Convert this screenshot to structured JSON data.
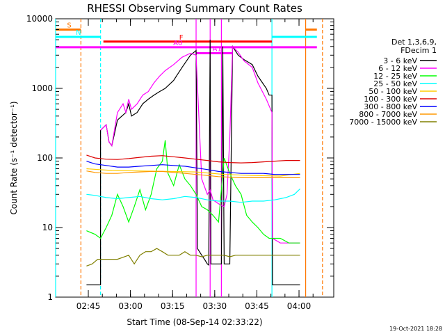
{
  "chart_data": {
    "type": "line",
    "title": "RHESSI Observing Summary Count Rates",
    "xlabel": "Start Time (08-Sep-14 02:33:22)",
    "ylabel": "Count Rate (s⁻¹ detector⁻¹)",
    "y_scale": "log",
    "ylim": [
      1,
      10000
    ],
    "xlim_minutes_after_start": [
      0,
      99
    ],
    "x_start": "02:33:22",
    "x_ticks": [
      "02:45",
      "03:00",
      "03:15",
      "03:30",
      "03:45",
      "04:00"
    ],
    "y_ticks": [
      "1",
      "10",
      "100",
      "1000",
      "10000"
    ],
    "legend_title": [
      "Det 1,3,6,9,",
      "FDecim 1"
    ],
    "legend_position": "right",
    "series": [
      {
        "name": "3 - 6 keV",
        "color": "#000000",
        "points": [
          [
            11,
            1.5
          ],
          [
            16,
            1.5
          ],
          [
            16,
            250
          ],
          [
            18,
            300
          ],
          [
            19,
            170
          ],
          [
            20,
            150
          ],
          [
            22,
            350
          ],
          [
            25,
            450
          ],
          [
            26,
            600
          ],
          [
            27,
            400
          ],
          [
            29,
            450
          ],
          [
            31,
            600
          ],
          [
            33,
            700
          ],
          [
            35,
            800
          ],
          [
            37,
            900
          ],
          [
            39,
            1000
          ],
          [
            42,
            1300
          ],
          [
            45,
            2000
          ],
          [
            48,
            3000
          ],
          [
            50,
            3500
          ],
          [
            50.5,
            5
          ],
          [
            52,
            4
          ],
          [
            53,
            3.5
          ],
          [
            54,
            3
          ],
          [
            54.5,
            2.9
          ],
          [
            55,
            5000
          ],
          [
            55.3,
            3
          ],
          [
            58,
            3
          ],
          [
            59,
            3
          ],
          [
            59.5,
            4000
          ],
          [
            60,
            3
          ],
          [
            62,
            3
          ],
          [
            63,
            4000
          ],
          [
            65,
            3000
          ],
          [
            67,
            2600
          ],
          [
            70,
            2200
          ],
          [
            72,
            1500
          ],
          [
            75,
            1000
          ],
          [
            76,
            800
          ],
          [
            77,
            800
          ],
          [
            77.2,
            1.5
          ],
          [
            87,
            1.5
          ]
        ]
      },
      {
        "name": "6 - 12 keV",
        "color": "#ff00ff",
        "points": [
          [
            16,
            250
          ],
          [
            18,
            300
          ],
          [
            19,
            170
          ],
          [
            20,
            150
          ],
          [
            22,
            450
          ],
          [
            24,
            600
          ],
          [
            25,
            450
          ],
          [
            26,
            700
          ],
          [
            27,
            500
          ],
          [
            29,
            600
          ],
          [
            31,
            800
          ],
          [
            33,
            900
          ],
          [
            35,
            1200
          ],
          [
            37,
            1500
          ],
          [
            39,
            1800
          ],
          [
            42,
            2200
          ],
          [
            45,
            2800
          ],
          [
            48,
            3200
          ],
          [
            50,
            3000
          ],
          [
            52,
            50
          ],
          [
            54,
            30
          ],
          [
            55,
            35
          ],
          [
            56,
            25
          ],
          [
            58,
            22
          ],
          [
            60,
            20
          ],
          [
            61,
            30
          ],
          [
            62,
            200
          ],
          [
            63,
            4000
          ],
          [
            65,
            3300
          ],
          [
            67,
            2500
          ],
          [
            70,
            2000
          ],
          [
            72,
            1200
          ],
          [
            75,
            700
          ],
          [
            77,
            450
          ],
          [
            77.2,
            7
          ],
          [
            80,
            6
          ],
          [
            87,
            6
          ]
        ]
      },
      {
        "name": "12 - 25 keV",
        "color": "#00ff00",
        "points": [
          [
            11,
            9
          ],
          [
            14,
            8
          ],
          [
            16,
            7
          ],
          [
            18,
            10
          ],
          [
            20,
            15
          ],
          [
            22,
            30
          ],
          [
            24,
            20
          ],
          [
            26,
            12
          ],
          [
            28,
            20
          ],
          [
            30,
            35
          ],
          [
            32,
            18
          ],
          [
            34,
            30
          ],
          [
            36,
            70
          ],
          [
            38,
            90
          ],
          [
            39,
            180
          ],
          [
            40,
            60
          ],
          [
            42,
            40
          ],
          [
            44,
            80
          ],
          [
            46,
            50
          ],
          [
            48,
            40
          ],
          [
            50,
            30
          ],
          [
            52,
            20
          ],
          [
            54,
            18
          ],
          [
            56,
            15
          ],
          [
            58,
            12
          ],
          [
            60,
            100
          ],
          [
            62,
            60
          ],
          [
            64,
            40
          ],
          [
            66,
            30
          ],
          [
            68,
            15
          ],
          [
            70,
            12
          ],
          [
            72,
            10
          ],
          [
            74,
            8
          ],
          [
            76,
            7
          ],
          [
            77,
            7
          ],
          [
            78,
            7
          ],
          [
            80,
            7
          ],
          [
            83,
            6
          ],
          [
            87,
            6
          ]
        ]
      },
      {
        "name": "25 - 50 keV",
        "color": "#00ffff",
        "points": [
          [
            11,
            30
          ],
          [
            14,
            29
          ],
          [
            18,
            27
          ],
          [
            22,
            26
          ],
          [
            26,
            27
          ],
          [
            30,
            28
          ],
          [
            34,
            26
          ],
          [
            38,
            25
          ],
          [
            42,
            26
          ],
          [
            46,
            28
          ],
          [
            50,
            27
          ],
          [
            54,
            25
          ],
          [
            58,
            24
          ],
          [
            62,
            24
          ],
          [
            66,
            23
          ],
          [
            70,
            24
          ],
          [
            74,
            24
          ],
          [
            78,
            25
          ],
          [
            82,
            27
          ],
          [
            85,
            30
          ],
          [
            87,
            36
          ]
        ]
      },
      {
        "name": "50 - 100 keV",
        "color": "#ffcc00",
        "points": [
          [
            11,
            70
          ],
          [
            20,
            66
          ],
          [
            30,
            65
          ],
          [
            40,
            64
          ],
          [
            50,
            63
          ],
          [
            60,
            58
          ],
          [
            70,
            56
          ],
          [
            80,
            55
          ],
          [
            87,
            60
          ]
        ]
      },
      {
        "name": "100 - 300 keV",
        "color": "#dd0000",
        "points": [
          [
            11,
            110
          ],
          [
            14,
            100
          ],
          [
            18,
            96
          ],
          [
            22,
            95
          ],
          [
            26,
            98
          ],
          [
            30,
            102
          ],
          [
            34,
            106
          ],
          [
            38,
            108
          ],
          [
            42,
            104
          ],
          [
            46,
            100
          ],
          [
            50,
            96
          ],
          [
            54,
            92
          ],
          [
            58,
            88
          ],
          [
            62,
            86
          ],
          [
            66,
            85
          ],
          [
            70,
            86
          ],
          [
            74,
            88
          ],
          [
            78,
            90
          ],
          [
            82,
            92
          ],
          [
            87,
            92
          ]
        ]
      },
      {
        "name": "300 - 800 keV",
        "color": "#0000ff",
        "points": [
          [
            11,
            90
          ],
          [
            14,
            82
          ],
          [
            18,
            78
          ],
          [
            22,
            74
          ],
          [
            26,
            74
          ],
          [
            30,
            76
          ],
          [
            34,
            78
          ],
          [
            38,
            80
          ],
          [
            42,
            78
          ],
          [
            46,
            76
          ],
          [
            50,
            72
          ],
          [
            54,
            68
          ],
          [
            58,
            64
          ],
          [
            62,
            62
          ],
          [
            66,
            60
          ],
          [
            70,
            60
          ],
          [
            74,
            60
          ],
          [
            78,
            58
          ],
          [
            82,
            58
          ],
          [
            87,
            58
          ]
        ]
      },
      {
        "name": "800 - 7000 keV",
        "color": "#ff9900",
        "points": [
          [
            11,
            65
          ],
          [
            14,
            62
          ],
          [
            18,
            60
          ],
          [
            22,
            60
          ],
          [
            26,
            62
          ],
          [
            30,
            63
          ],
          [
            34,
            64
          ],
          [
            38,
            64
          ],
          [
            42,
            62
          ],
          [
            46,
            60
          ],
          [
            50,
            58
          ],
          [
            54,
            56
          ],
          [
            58,
            54
          ],
          [
            62,
            53
          ],
          [
            66,
            52
          ],
          [
            70,
            52
          ],
          [
            74,
            52
          ],
          [
            78,
            52
          ],
          [
            82,
            52
          ],
          [
            87,
            52
          ]
        ]
      },
      {
        "name": "7000 - 15000 keV",
        "color": "#808000",
        "points": [
          [
            11,
            2.8
          ],
          [
            13,
            3
          ],
          [
            15,
            3.5
          ],
          [
            18,
            3.5
          ],
          [
            22,
            3.5
          ],
          [
            26,
            4
          ],
          [
            28,
            3
          ],
          [
            30,
            4
          ],
          [
            32,
            4.5
          ],
          [
            34,
            4.5
          ],
          [
            36,
            5
          ],
          [
            38,
            4.5
          ],
          [
            40,
            4
          ],
          [
            42,
            4
          ],
          [
            44,
            4
          ],
          [
            46,
            4.5
          ],
          [
            48,
            4
          ],
          [
            50,
            4
          ],
          [
            52,
            3.8
          ],
          [
            54,
            4
          ],
          [
            56,
            4
          ],
          [
            58,
            4
          ],
          [
            60,
            4
          ],
          [
            62,
            3.8
          ],
          [
            64,
            4
          ],
          [
            66,
            4
          ],
          [
            68,
            4
          ],
          [
            70,
            4
          ],
          [
            72,
            4
          ],
          [
            74,
            4
          ],
          [
            76,
            4
          ],
          [
            78,
            4
          ],
          [
            80,
            4
          ],
          [
            82,
            4
          ],
          [
            84,
            4
          ],
          [
            87,
            4
          ]
        ]
      }
    ],
    "state_bars": [
      {
        "label": "S",
        "color": "#ff7700",
        "level": 7000,
        "segments": [
          [
            0,
            9
          ],
          [
            89,
            93
          ]
        ]
      },
      {
        "label": "N",
        "color": "#00ffff",
        "level": 5500,
        "segments": [
          [
            0,
            16
          ],
          [
            77,
            93
          ]
        ]
      },
      {
        "label": "F",
        "color": "#ff0000",
        "level": 4700,
        "segments": [
          [
            17,
            77
          ]
        ]
      },
      {
        "label": "A0",
        "color": "#ff00ff",
        "level": 3900,
        "segments": [
          [
            0,
            93
          ]
        ]
      },
      {
        "label": "A1",
        "color": "#ff00ff",
        "level": 3200,
        "segments": [
          [
            50,
            63
          ]
        ]
      }
    ],
    "vertical_markers": [
      {
        "color": "#00ffff",
        "style": "solid",
        "x": 0
      },
      {
        "color": "#ff7700",
        "style": "dashed",
        "x": 9
      },
      {
        "color": "#00ffff",
        "style": "dashed",
        "x": 16
      },
      {
        "color": "#ff00ff",
        "style": "solid",
        "x": 50
      },
      {
        "color": "#ff00ff",
        "style": "solid",
        "x": 55
      },
      {
        "color": "#ff00ff",
        "style": "solid",
        "x": 59
      },
      {
        "color": "#00ffff",
        "style": "solid",
        "x": 77
      },
      {
        "color": "#ff7700",
        "style": "solid",
        "x": 89
      },
      {
        "color": "#ff7700",
        "style": "dashed",
        "x": 95
      }
    ],
    "timestamp": "19-Oct-2021 18:28"
  }
}
